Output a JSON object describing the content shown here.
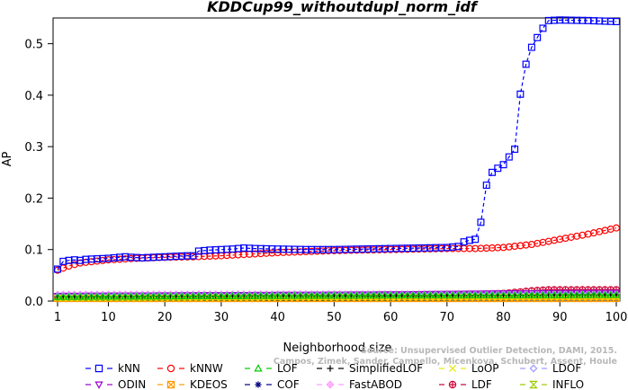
{
  "chart_data": {
    "type": "line",
    "title": "KDDCup99_withoutdupl_norm_idf",
    "xlabel": "Neighborhood size",
    "ylabel": "AP",
    "xlim": [
      1,
      100
    ],
    "ylim": [
      0,
      0.55
    ],
    "x_ticks": [
      1,
      10,
      20,
      30,
      40,
      50,
      60,
      70,
      80,
      90,
      100
    ],
    "y_ticks": [
      0.0,
      0.1,
      0.2,
      0.3,
      0.4,
      0.5
    ],
    "y_tick_labels": [
      "0.0",
      "0.1",
      "0.2",
      "0.3",
      "0.4",
      "0.5"
    ],
    "legend_position": "bottom",
    "watermark": "Source: Unsupervised Outlier Detection, DAMI, 2015.\nCampos, Zimek, Sander, Campello, Micenkova, Schubert, Assent, Houle",
    "series": [
      {
        "name": "kNN",
        "color": "#0000ff",
        "marker": "square",
        "points": [
          [
            1,
            0.062
          ],
          [
            2,
            0.077
          ],
          [
            3,
            0.079
          ],
          [
            4,
            0.08
          ],
          [
            5,
            0.079
          ],
          [
            6,
            0.081
          ],
          [
            8,
            0.082
          ],
          [
            10,
            0.083
          ],
          [
            12,
            0.085
          ],
          [
            13,
            0.086
          ],
          [
            14,
            0.085
          ],
          [
            16,
            0.084
          ],
          [
            18,
            0.085
          ],
          [
            20,
            0.086
          ],
          [
            22,
            0.087
          ],
          [
            24,
            0.088
          ],
          [
            25,
            0.088
          ],
          [
            26,
            0.097
          ],
          [
            28,
            0.099
          ],
          [
            30,
            0.1
          ],
          [
            32,
            0.101
          ],
          [
            34,
            0.103
          ],
          [
            36,
            0.102
          ],
          [
            40,
            0.101
          ],
          [
            45,
            0.1
          ],
          [
            50,
            0.1
          ],
          [
            55,
            0.101
          ],
          [
            60,
            0.102
          ],
          [
            65,
            0.103
          ],
          [
            70,
            0.104
          ],
          [
            72,
            0.106
          ],
          [
            73,
            0.115
          ],
          [
            74,
            0.118
          ],
          [
            75,
            0.12
          ],
          [
            76,
            0.153
          ],
          [
            77,
            0.225
          ],
          [
            78,
            0.25
          ],
          [
            79,
            0.258
          ],
          [
            80,
            0.265
          ],
          [
            81,
            0.28
          ],
          [
            82,
            0.295
          ],
          [
            83,
            0.402
          ],
          [
            84,
            0.46
          ],
          [
            85,
            0.493
          ],
          [
            86,
            0.512
          ],
          [
            87,
            0.53
          ],
          [
            88,
            0.545
          ],
          [
            90,
            0.546
          ],
          [
            95,
            0.545
          ],
          [
            100,
            0.543
          ]
        ]
      },
      {
        "name": "kNNW",
        "color": "#ff0000",
        "marker": "circle",
        "points": [
          [
            1,
            0.06
          ],
          [
            3,
            0.068
          ],
          [
            5,
            0.074
          ],
          [
            10,
            0.08
          ],
          [
            15,
            0.083
          ],
          [
            20,
            0.085
          ],
          [
            25,
            0.086
          ],
          [
            30,
            0.088
          ],
          [
            35,
            0.091
          ],
          [
            40,
            0.094
          ],
          [
            45,
            0.096
          ],
          [
            50,
            0.098
          ],
          [
            55,
            0.099
          ],
          [
            60,
            0.1
          ],
          [
            65,
            0.101
          ],
          [
            70,
            0.102
          ],
          [
            75,
            0.102
          ],
          [
            80,
            0.104
          ],
          [
            85,
            0.11
          ],
          [
            90,
            0.12
          ],
          [
            95,
            0.13
          ],
          [
            100,
            0.142
          ]
        ]
      },
      {
        "name": "LOF",
        "color": "#00cc00",
        "marker": "triangle-up",
        "points": [
          [
            1,
            0.008
          ],
          [
            20,
            0.009
          ],
          [
            40,
            0.01
          ],
          [
            60,
            0.011
          ],
          [
            80,
            0.011
          ],
          [
            100,
            0.012
          ]
        ]
      },
      {
        "name": "SimplifiedLOF",
        "color": "#000000",
        "marker": "plus",
        "points": [
          [
            1,
            0.008
          ],
          [
            20,
            0.009
          ],
          [
            40,
            0.01
          ],
          [
            60,
            0.01
          ],
          [
            80,
            0.011
          ],
          [
            100,
            0.012
          ]
        ]
      },
      {
        "name": "LoOP",
        "color": "#e8e800",
        "marker": "cross",
        "points": [
          [
            1,
            0.006
          ],
          [
            50,
            0.007
          ],
          [
            100,
            0.008
          ]
        ]
      },
      {
        "name": "LDOF",
        "color": "#9999ff",
        "marker": "diamond",
        "points": [
          [
            1,
            0.01
          ],
          [
            50,
            0.012
          ],
          [
            100,
            0.013
          ]
        ]
      },
      {
        "name": "ODIN",
        "color": "#9900cc",
        "marker": "triangle-down",
        "points": [
          [
            1,
            0.01
          ],
          [
            20,
            0.011
          ],
          [
            40,
            0.012
          ],
          [
            60,
            0.013
          ],
          [
            80,
            0.015
          ],
          [
            100,
            0.016
          ]
        ]
      },
      {
        "name": "KDEOS",
        "color": "#ff9900",
        "marker": "square-x",
        "points": [
          [
            1,
            0.005
          ],
          [
            50,
            0.005
          ],
          [
            100,
            0.005
          ]
        ]
      },
      {
        "name": "COF",
        "color": "#000080",
        "marker": "asterisk",
        "points": [
          [
            1,
            0.009
          ],
          [
            50,
            0.01
          ],
          [
            100,
            0.011
          ]
        ]
      },
      {
        "name": "FastABOD",
        "color": "#ff99ff",
        "marker": "diamond-plus",
        "points": [
          [
            1,
            0.013
          ],
          [
            50,
            0.014
          ],
          [
            100,
            0.015
          ]
        ]
      },
      {
        "name": "LDF",
        "color": "#cc0033",
        "marker": "circle-plus",
        "points": [
          [
            1,
            0.01
          ],
          [
            40,
            0.011
          ],
          [
            70,
            0.012
          ],
          [
            80,
            0.015
          ],
          [
            85,
            0.02
          ],
          [
            88,
            0.022
          ],
          [
            92,
            0.022
          ],
          [
            100,
            0.022
          ]
        ]
      },
      {
        "name": "INFLO",
        "color": "#99cc00",
        "marker": "hourglass",
        "points": [
          [
            1,
            0.007
          ],
          [
            50,
            0.008
          ],
          [
            100,
            0.009
          ]
        ]
      }
    ]
  }
}
